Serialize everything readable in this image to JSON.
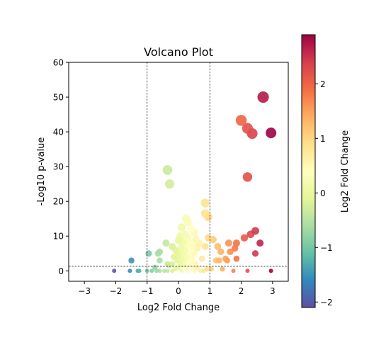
{
  "chart_data": {
    "type": "scatter",
    "title": "Volcano Plot",
    "xlabel": "Log2 Fold Change",
    "ylabel": "-Log10 p-value",
    "xlim": [
      -3.5,
      3.5
    ],
    "ylim": [
      -3,
      60
    ],
    "xticks": [
      -3,
      -2,
      -1,
      0,
      1,
      2,
      3
    ],
    "yticks": [
      0,
      10,
      20,
      30,
      40,
      50,
      60
    ],
    "xtick_labels": [
      "−3",
      "−2",
      "−1",
      "0",
      "1",
      "2",
      "3"
    ],
    "ytick_labels": [
      "0",
      "10",
      "20",
      "30",
      "40",
      "50",
      "60"
    ],
    "vertical_threshold_lines": [
      -1,
      1
    ],
    "horizontal_threshold_line": 1.3,
    "grid": false,
    "colormap": "Spectral_r",
    "colorbar": {
      "label": "Log2 Fold Change",
      "range": [
        -2.1,
        2.9
      ],
      "ticks": [
        -2,
        -1,
        0,
        1,
        2
      ],
      "tick_labels": [
        "−2",
        "−1",
        "0",
        "1",
        "2"
      ]
    },
    "points": [
      [
        2.7,
        50.0
      ],
      [
        2.0,
        43.3
      ],
      [
        2.2,
        41.0
      ],
      [
        2.35,
        39.5
      ],
      [
        2.95,
        39.7
      ],
      [
        2.2,
        27.0
      ],
      [
        -0.35,
        29.0
      ],
      [
        -0.28,
        25.0
      ],
      [
        0.85,
        19.5
      ],
      [
        0.85,
        16.5
      ],
      [
        0.95,
        15.5
      ],
      [
        0.25,
        15.0
      ],
      [
        0.3,
        14.0
      ],
      [
        0.1,
        12.5
      ],
      [
        0.4,
        12.0
      ],
      [
        0.5,
        11.0
      ],
      [
        0.2,
        10.5
      ],
      [
        0.05,
        10.0
      ],
      [
        0.3,
        9.5
      ],
      [
        0.55,
        9.0
      ],
      [
        0.0,
        8.8
      ],
      [
        0.15,
        8.5
      ],
      [
        0.35,
        8.0
      ],
      [
        0.65,
        8.0
      ],
      [
        -0.4,
        8.0
      ],
      [
        0.25,
        7.5
      ],
      [
        0.1,
        7.0
      ],
      [
        -0.2,
        7.0
      ],
      [
        0.45,
        7.0
      ],
      [
        0.6,
        6.5
      ],
      [
        0.05,
        6.0
      ],
      [
        0.2,
        6.0
      ],
      [
        -0.1,
        6.0
      ],
      [
        0.35,
        5.5
      ],
      [
        0.15,
        5.0
      ],
      [
        -0.05,
        5.0
      ],
      [
        0.5,
        5.0
      ],
      [
        0.25,
        4.5
      ],
      [
        0.0,
        4.0
      ],
      [
        -0.15,
        4.0
      ],
      [
        0.3,
        4.0
      ],
      [
        0.1,
        3.5
      ],
      [
        0.45,
        3.5
      ],
      [
        0.2,
        3.0
      ],
      [
        -0.05,
        3.0
      ],
      [
        0.05,
        2.5
      ],
      [
        0.35,
        2.5
      ],
      [
        0.15,
        2.0
      ],
      [
        -0.2,
        2.0
      ],
      [
        0.4,
        2.0
      ],
      [
        0.55,
        2.0
      ],
      [
        0.1,
        1.5
      ],
      [
        -0.3,
        1.5
      ],
      [
        0.25,
        1.0
      ],
      [
        0.0,
        1.0
      ],
      [
        0.6,
        1.0
      ],
      [
        -0.1,
        0.5
      ],
      [
        0.45,
        0.5
      ],
      [
        0.3,
        0.0
      ],
      [
        0.1,
        0.0
      ],
      [
        0.5,
        0.0
      ],
      [
        0.7,
        0.0
      ],
      [
        0.8,
        0.0
      ],
      [
        -0.35,
        0.0
      ],
      [
        -0.45,
        0.0
      ],
      [
        -0.6,
        0.0
      ],
      [
        -0.7,
        0.0
      ],
      [
        -0.2,
        0.0
      ],
      [
        0.9,
        0.5
      ],
      [
        0.75,
        3.5
      ],
      [
        -0.6,
        5.5
      ],
      [
        -0.65,
        5.0
      ],
      [
        -0.95,
        5.0
      ],
      [
        -0.6,
        3.0
      ],
      [
        -0.35,
        2.0
      ],
      [
        -0.75,
        1.0
      ],
      [
        -0.85,
        0.0
      ],
      [
        -1.0,
        0.0
      ],
      [
        -1.3,
        0.0
      ],
      [
        -1.25,
        0.0
      ],
      [
        -1.5,
        3.0
      ],
      [
        -1.55,
        0.0
      ],
      [
        -2.05,
        0.0
      ],
      [
        0.85,
        7.0
      ],
      [
        0.95,
        9.5
      ],
      [
        1.1,
        9.0
      ],
      [
        1.25,
        7.0
      ],
      [
        1.35,
        5.5
      ],
      [
        1.6,
        8.0
      ],
      [
        1.65,
        5.5
      ],
      [
        1.8,
        6.5
      ],
      [
        1.85,
        8.0
      ],
      [
        2.1,
        9.5
      ],
      [
        2.3,
        10.5
      ],
      [
        2.45,
        11.5
      ],
      [
        2.6,
        8.0
      ],
      [
        2.45,
        5.0
      ],
      [
        1.2,
        3.0
      ],
      [
        1.3,
        3.0
      ],
      [
        1.5,
        3.5
      ],
      [
        1.55,
        3.0
      ],
      [
        1.85,
        3.5
      ],
      [
        1.05,
        0.5
      ],
      [
        1.4,
        0.5
      ],
      [
        1.75,
        0.0
      ],
      [
        2.2,
        0.0
      ],
      [
        2.95,
        0.0
      ]
    ]
  }
}
